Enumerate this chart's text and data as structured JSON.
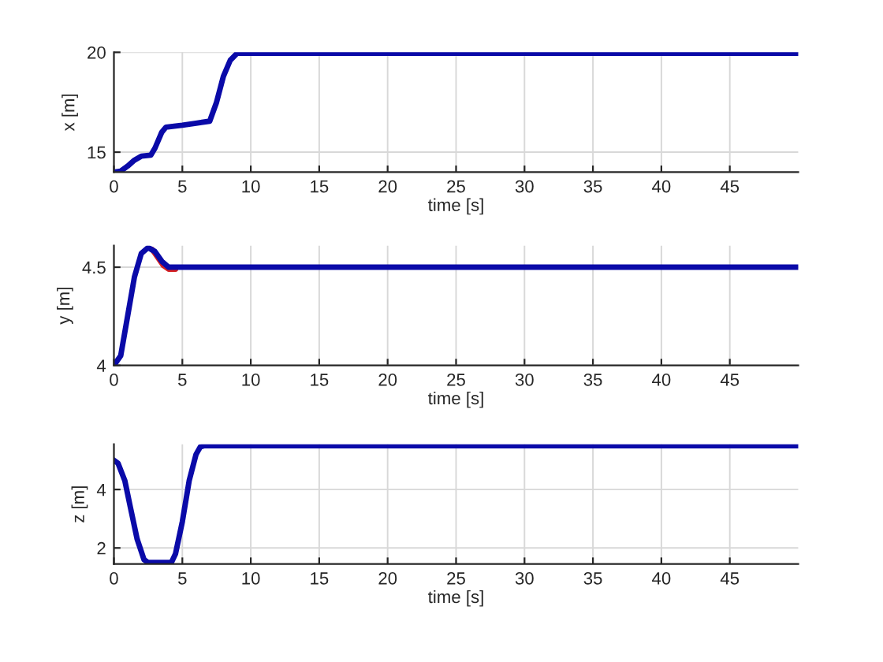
{
  "chart_data": [
    {
      "type": "line",
      "xlabel": "time [s]",
      "ylabel": "x [m]",
      "xlim": [
        0,
        50
      ],
      "ylim": [
        14,
        20
      ],
      "xticks": [
        0,
        5,
        10,
        15,
        20,
        25,
        30,
        35,
        40,
        45
      ],
      "yticks": [
        15,
        20
      ],
      "grid": true,
      "series": [
        {
          "color": "#0a0aa8",
          "x": [
            0,
            0.5,
            1,
            1.5,
            2,
            2.7,
            3.0,
            3.5,
            3.8,
            5,
            6,
            7,
            7.5,
            8,
            8.5,
            9,
            10,
            50
          ],
          "values": [
            14,
            14.05,
            14.3,
            14.6,
            14.8,
            14.85,
            15.2,
            16.0,
            16.25,
            16.35,
            16.45,
            16.55,
            17.5,
            18.8,
            19.6,
            19.95,
            19.95,
            19.95
          ]
        }
      ]
    },
    {
      "type": "line",
      "xlabel": "time [s]",
      "ylabel": "y [m]",
      "xlim": [
        0,
        50
      ],
      "ylim": [
        4,
        4.61
      ],
      "xticks": [
        0,
        5,
        10,
        15,
        20,
        25,
        30,
        35,
        40,
        45
      ],
      "yticks": [
        4,
        4.5
      ],
      "grid": true,
      "series": [
        {
          "color": "#d62020",
          "x": [
            2.8,
            3.2,
            3.6,
            4.0,
            4.5
          ],
          "values": [
            4.59,
            4.55,
            4.51,
            4.49,
            4.49
          ]
        },
        {
          "color": "#0a0aa8",
          "x": [
            0,
            0.5,
            1,
            1.5,
            2,
            2.5,
            3,
            3.5,
            4,
            4.5,
            50
          ],
          "values": [
            4,
            4.05,
            4.25,
            4.45,
            4.57,
            4.6,
            4.58,
            4.53,
            4.5,
            4.5,
            4.5
          ]
        }
      ]
    },
    {
      "type": "line",
      "xlabel": "time [s]",
      "ylabel": "z [m]",
      "xlim": [
        0,
        50
      ],
      "ylim": [
        1.45,
        5.55
      ],
      "xticks": [
        0,
        5,
        10,
        15,
        20,
        25,
        30,
        35,
        40,
        45
      ],
      "yticks": [
        2,
        4
      ],
      "grid": true,
      "series": [
        {
          "color": "#0a0aa8",
          "x": [
            0,
            0.3,
            0.8,
            1.2,
            1.7,
            2.2,
            2.5,
            4.2,
            4.5,
            5,
            5.5,
            6,
            6.3,
            6.6,
            50
          ],
          "values": [
            5.0,
            4.9,
            4.3,
            3.4,
            2.3,
            1.6,
            1.5,
            1.5,
            1.8,
            2.9,
            4.3,
            5.2,
            5.45,
            5.5,
            5.5
          ]
        }
      ]
    }
  ]
}
